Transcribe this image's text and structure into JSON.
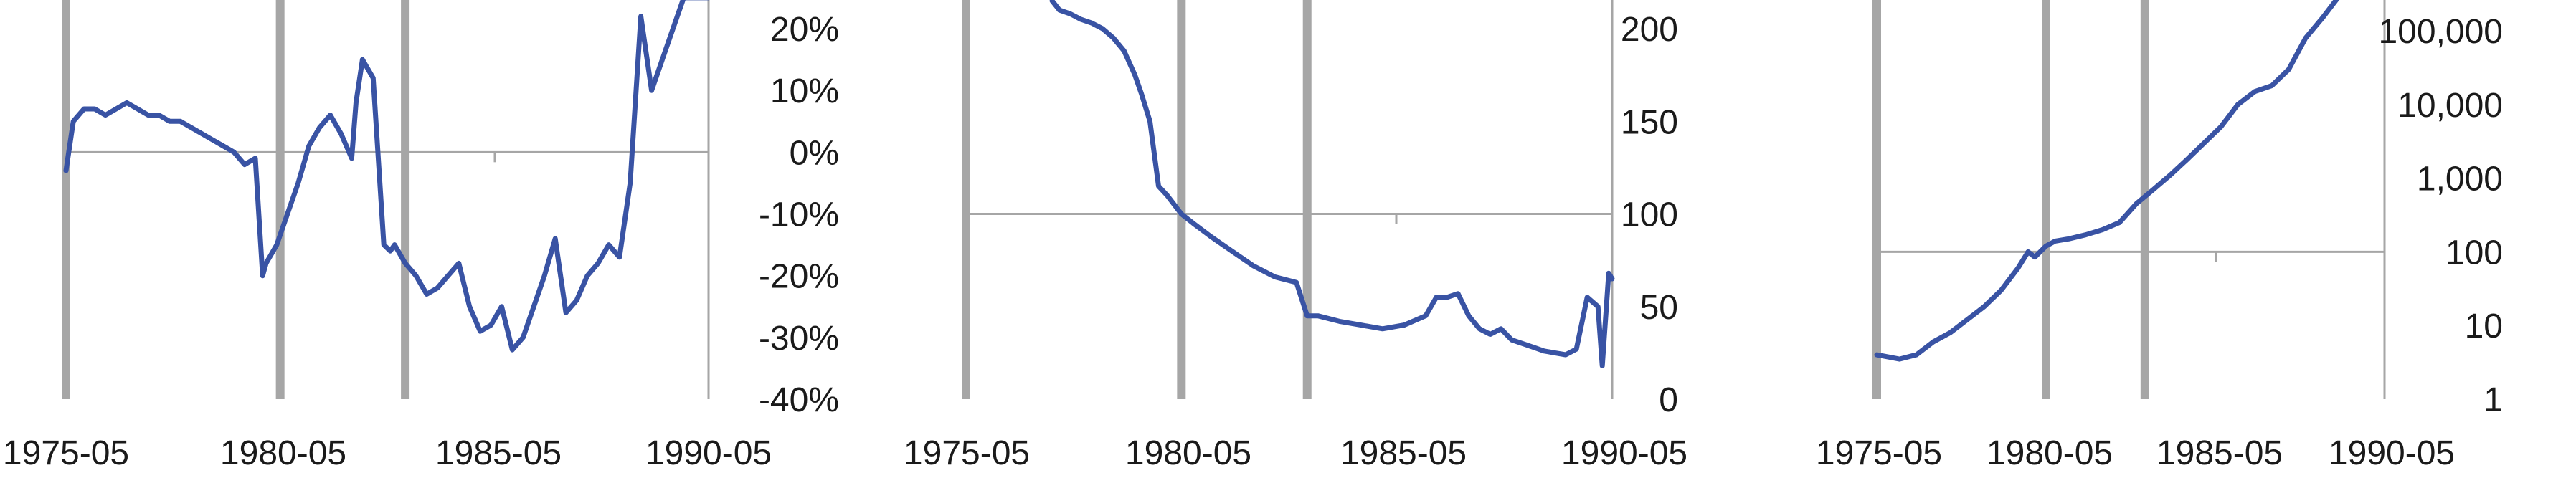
{
  "chart_data": [
    {
      "type": "line",
      "y_axis_position": "right",
      "x_ticks": [
        "1975-05",
        "1980-05",
        "1985-05",
        "1990-05"
      ],
      "y_ticks": [
        "20%",
        "10%",
        "0%",
        "-10%",
        "-20%",
        "-30%",
        "-40%"
      ],
      "y_tick_values": [
        20,
        10,
        0,
        -10,
        -20,
        -30,
        -40
      ],
      "ylim": [
        -40,
        25
      ],
      "x_range": [
        1975.33,
        1990.33
      ],
      "baseline": 0,
      "reference_lines_x": [
        1975.33,
        1980.33,
        1983.25
      ],
      "series": [
        {
          "x": [
            1975.33,
            1975.5,
            1975.75,
            1976.0,
            1976.25,
            1976.5,
            1976.75,
            1977.0,
            1977.25,
            1977.5,
            1977.75,
            1978.0,
            1978.25,
            1978.5,
            1978.75,
            1979.0,
            1979.25,
            1979.5,
            1979.75,
            1979.92,
            1980.0,
            1980.25,
            1980.5,
            1980.75,
            1981.0,
            1981.25,
            1981.5,
            1981.75,
            1982.0,
            1982.1,
            1982.25,
            1982.5,
            1982.75,
            1982.9,
            1983.0,
            1983.25,
            1983.5,
            1983.75,
            1984.0,
            1984.25,
            1984.5,
            1984.75,
            1985.0,
            1985.25,
            1985.5,
            1985.75,
            1986.0,
            1986.25,
            1986.5,
            1986.75,
            1987.0,
            1987.25,
            1987.5,
            1987.75,
            1988.0,
            1988.25,
            1988.5,
            1988.75,
            1989.0,
            1989.25,
            1989.5,
            1989.75,
            1990.0,
            1990.25,
            1990.33
          ],
          "y": [
            -3,
            5,
            7,
            7,
            6,
            7,
            8,
            7,
            6,
            6,
            5,
            5,
            4,
            3,
            2,
            1,
            0,
            -2,
            -1,
            -20,
            -18,
            -15,
            -10,
            -5,
            1,
            4,
            6,
            3,
            -1,
            8,
            15,
            12,
            -15,
            -16,
            -15,
            -18,
            -20,
            -23,
            -22,
            -20,
            -18,
            -25,
            -29,
            -28,
            -25,
            -32,
            -30,
            -25,
            -20,
            -14,
            -26,
            -24,
            -20,
            -18,
            -15,
            -17,
            -5,
            22,
            10,
            15,
            20,
            25,
            25,
            25,
            25
          ]
        }
      ]
    },
    {
      "type": "line",
      "y_axis_position": "right",
      "x_ticks": [
        "1975-05",
        "1980-05",
        "1985-05",
        "1990-05"
      ],
      "y_ticks": [
        "200",
        "150",
        "100",
        "50",
        "0"
      ],
      "y_tick_values": [
        200,
        150,
        100,
        50,
        0
      ],
      "ylim": [
        0,
        215
      ],
      "x_range": [
        1975.33,
        1990.33
      ],
      "baseline": 100,
      "reference_lines_x": [
        1975.33,
        1980.33,
        1983.25
      ],
      "series": [
        {
          "x": [
            1977.33,
            1977.5,
            1977.75,
            1978.0,
            1978.25,
            1978.5,
            1978.75,
            1979.0,
            1979.25,
            1979.4,
            1979.6,
            1979.8,
            1980.0,
            1980.33,
            1980.6,
            1981.0,
            1981.5,
            1982.0,
            1982.5,
            1983.0,
            1983.25,
            1983.5,
            1984.0,
            1984.5,
            1985.0,
            1985.5,
            1986.0,
            1986.25,
            1986.5,
            1986.75,
            1987.0,
            1987.25,
            1987.5,
            1987.75,
            1988.0,
            1988.25,
            1988.5,
            1988.75,
            1989.0,
            1989.25,
            1989.5,
            1989.75,
            1990.0,
            1990.1,
            1990.25,
            1990.33
          ],
          "y": [
            215,
            210,
            208,
            205,
            203,
            200,
            195,
            188,
            175,
            165,
            150,
            115,
            110,
            100,
            95,
            88,
            80,
            72,
            66,
            63,
            45,
            45,
            42,
            40,
            38,
            40,
            45,
            55,
            55,
            57,
            45,
            38,
            35,
            38,
            32,
            30,
            28,
            26,
            25,
            24,
            27,
            55,
            50,
            18,
            68,
            65
          ]
        }
      ]
    },
    {
      "type": "line",
      "y_axis_position": "right",
      "y_scale": "log",
      "x_ticks": [
        "1975-05",
        "1980-05",
        "1985-05",
        "1990-05"
      ],
      "y_ticks": [
        "100,000",
        "10,000",
        "1,000",
        "100",
        "10",
        "1"
      ],
      "y_tick_values": [
        100000,
        10000,
        1000,
        100,
        10,
        1
      ],
      "ylim": [
        1,
        1000000
      ],
      "x_range": [
        1975.33,
        1990.33
      ],
      "baseline": 100,
      "reference_lines_x": [
        1975.33,
        1980.33,
        1983.25
      ],
      "series": [
        {
          "x": [
            1975.33,
            1976.0,
            1976.5,
            1977.0,
            1977.5,
            1978.0,
            1978.5,
            1979.0,
            1979.5,
            1979.8,
            1980.0,
            1980.33,
            1980.6,
            1981.0,
            1981.5,
            1982.0,
            1982.5,
            1983.0,
            1983.5,
            1984.0,
            1984.5,
            1985.0,
            1985.5,
            1986.0,
            1986.5,
            1987.0,
            1987.5,
            1988.0,
            1988.5,
            1989.0,
            1989.5,
            1990.0,
            1990.33
          ],
          "y": [
            4,
            3.5,
            4,
            6,
            8,
            12,
            18,
            30,
            60,
            100,
            85,
            120,
            140,
            150,
            170,
            200,
            250,
            450,
            700,
            1100,
            1800,
            3000,
            5000,
            10000,
            15000,
            18000,
            30000,
            80000,
            150000,
            300000,
            600000,
            900000,
            1000000
          ]
        }
      ]
    }
  ]
}
